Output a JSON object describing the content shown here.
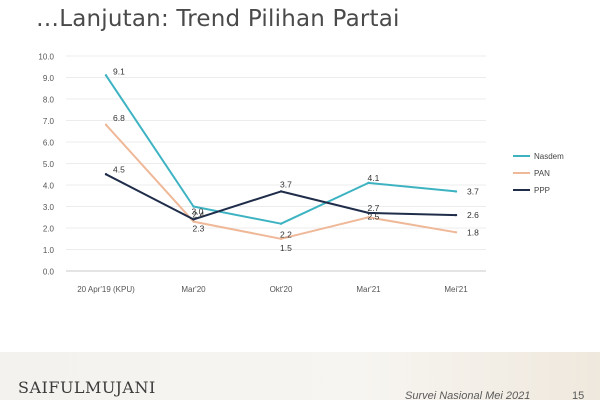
{
  "slide": {
    "title": "…Lanjutan: Trend Pilihan Partai",
    "logo_text": "SAIFULMUJANI",
    "footer_note": "Survei Nasional Mei 2021",
    "page_number": "15"
  },
  "chart_data": {
    "type": "line",
    "title": "",
    "xlabel": "",
    "ylabel": "",
    "categories": [
      "20 Apr'19 (KPU)",
      "Mar'20",
      "Okt'20",
      "Mar'21",
      "Mei'21"
    ],
    "ylim": [
      0,
      10
    ],
    "yticks": [
      0.0,
      1.0,
      2.0,
      3.0,
      4.0,
      5.0,
      6.0,
      7.0,
      8.0,
      9.0,
      10.0
    ],
    "grid": true,
    "legend_position": "right",
    "series": [
      {
        "name": "Nasdem",
        "color": "#3db3c2",
        "values": [
          9.1,
          3.0,
          2.2,
          4.1,
          3.7
        ],
        "labels": [
          "9.1",
          "3.0",
          "2.2",
          "4.1",
          "3.7"
        ]
      },
      {
        "name": "PAN",
        "color": "#efb898",
        "values": [
          6.8,
          2.3,
          1.5,
          2.5,
          1.8
        ],
        "labels": [
          "6.8",
          "2.3",
          "1.5",
          "2.5",
          "1.8"
        ]
      },
      {
        "name": "PPP",
        "color": "#1f2d4a",
        "values": [
          4.5,
          2.4,
          3.7,
          2.7,
          2.6
        ],
        "labels": [
          "4.5",
          "2.4",
          "3.7",
          "2.7",
          "2.6"
        ]
      }
    ]
  }
}
